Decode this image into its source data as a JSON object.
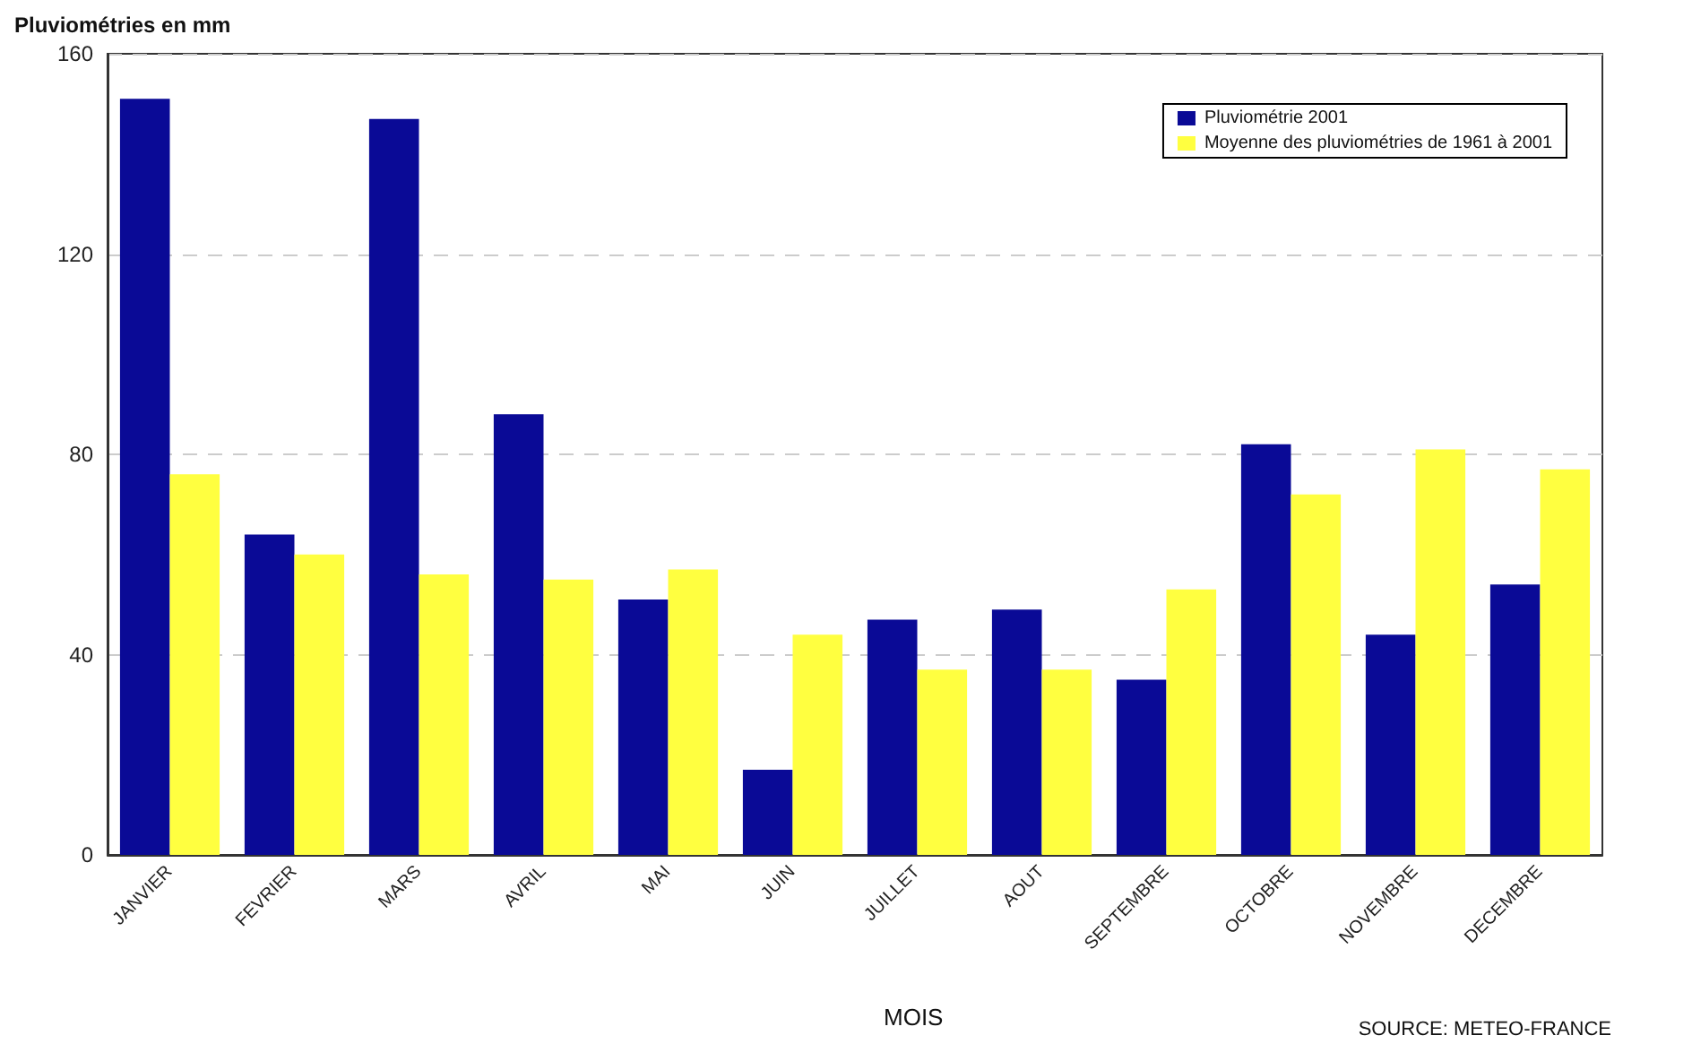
{
  "chart_data": {
    "type": "bar",
    "ylabel": "Pluviométries en mm",
    "xlabel": "MOIS",
    "annotations": [
      "SOURCE: METEO-FRANCE"
    ],
    "categories": [
      "JANVIER",
      "FEVRIER",
      "MARS",
      "AVRIL",
      "MAI",
      "JUIN",
      "JUILLET",
      "AOUT",
      "SEPTEMBRE",
      "OCTOBRE",
      "NOVEMBRE",
      "DECEMBRE"
    ],
    "series": [
      {
        "name": "Pluviométrie 2001",
        "color": "#0a0a96",
        "values": [
          151,
          64,
          147,
          88,
          51,
          17,
          47,
          49,
          35,
          82,
          44,
          54
        ]
      },
      {
        "name": "Moyenne des pluviométries de 1961 à 2001",
        "color": "#ffff40",
        "values": [
          76,
          60,
          56,
          55,
          57,
          44,
          37,
          37,
          53,
          72,
          81,
          77
        ]
      }
    ],
    "ylim": [
      0,
      160
    ],
    "yticks": [
      0,
      40,
      80,
      120,
      160
    ],
    "grid": "y",
    "legend": "top right"
  }
}
